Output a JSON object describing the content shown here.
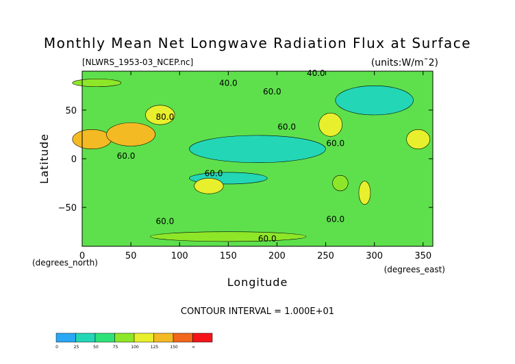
{
  "chart_data": {
    "type": "heatmap",
    "title": "Monthly Mean Net Longwave Radiation Flux at Surface",
    "source_file": "[NLWRS_1953-03_NCEP.nc]",
    "units_label": "(units:W/m¯2)",
    "xlabel": "Longitude",
    "ylabel": "Latitude",
    "x_unit_note": "(degrees_east)",
    "y_unit_note": "(degrees_north)",
    "xlim": [
      0,
      360
    ],
    "ylim": [
      -90,
      90
    ],
    "x_ticks": [
      0,
      50,
      100,
      150,
      200,
      250,
      300,
      350
    ],
    "y_ticks": [
      -50,
      0,
      50
    ],
    "contour_interval_text": "CONTOUR INTERVAL = 1.000E+01",
    "contour_labels": [
      {
        "text": "40.0",
        "lon": 150,
        "lat": 75
      },
      {
        "text": "40.0",
        "lon": 240,
        "lat": 85
      },
      {
        "text": "60.0",
        "lon": 195,
        "lat": 66
      },
      {
        "text": "80.0",
        "lon": 85,
        "lat": 40
      },
      {
        "text": "60.0",
        "lon": 210,
        "lat": 30
      },
      {
        "text": "60.0",
        "lon": 260,
        "lat": 13
      },
      {
        "text": "60.0",
        "lon": 45,
        "lat": 0
      },
      {
        "text": "60.0",
        "lon": 135,
        "lat": -18
      },
      {
        "text": "60.0",
        "lon": 260,
        "lat": -65
      },
      {
        "text": "60.0",
        "lon": 85,
        "lat": -67
      },
      {
        "text": "60.0",
        "lon": 190,
        "lat": -85
      }
    ],
    "colorbar": {
      "ticks": [
        "0",
        "25",
        "50",
        "75",
        "100",
        "125",
        "150",
        "∞"
      ],
      "colors": [
        "#2aa7f5",
        "#23d6b6",
        "#2ee27a",
        "#8ee629",
        "#e8ef2c",
        "#f4ba24",
        "#f2661d",
        "#f4141a"
      ]
    },
    "field_regions": [
      {
        "lon": 180,
        "lat": 10,
        "rx": 70,
        "ry": 14,
        "value": 25
      },
      {
        "lon": 150,
        "lat": -20,
        "rx": 40,
        "ry": 6,
        "value": 30
      },
      {
        "lon": 300,
        "lat": 60,
        "rx": 40,
        "ry": 15,
        "value": 40
      },
      {
        "lon": 10,
        "lat": 20,
        "rx": 20,
        "ry": 10,
        "value": 140
      },
      {
        "lon": 50,
        "lat": 25,
        "rx": 25,
        "ry": 12,
        "value": 125
      },
      {
        "lon": 80,
        "lat": 45,
        "rx": 15,
        "ry": 10,
        "value": 110
      },
      {
        "lon": 130,
        "lat": -28,
        "rx": 15,
        "ry": 8,
        "value": 120
      },
      {
        "lon": 255,
        "lat": 35,
        "rx": 12,
        "ry": 12,
        "value": 110
      },
      {
        "lon": 345,
        "lat": 20,
        "rx": 12,
        "ry": 10,
        "value": 115
      },
      {
        "lon": 290,
        "lat": -35,
        "rx": 6,
        "ry": 12,
        "value": 100
      },
      {
        "lon": 265,
        "lat": -25,
        "rx": 8,
        "ry": 8,
        "value": 90
      },
      {
        "lon": 15,
        "lat": 78,
        "rx": 25,
        "ry": 4,
        "value": 95
      },
      {
        "lon": 150,
        "lat": -80,
        "rx": 80,
        "ry": 5,
        "value": 90
      }
    ]
  }
}
